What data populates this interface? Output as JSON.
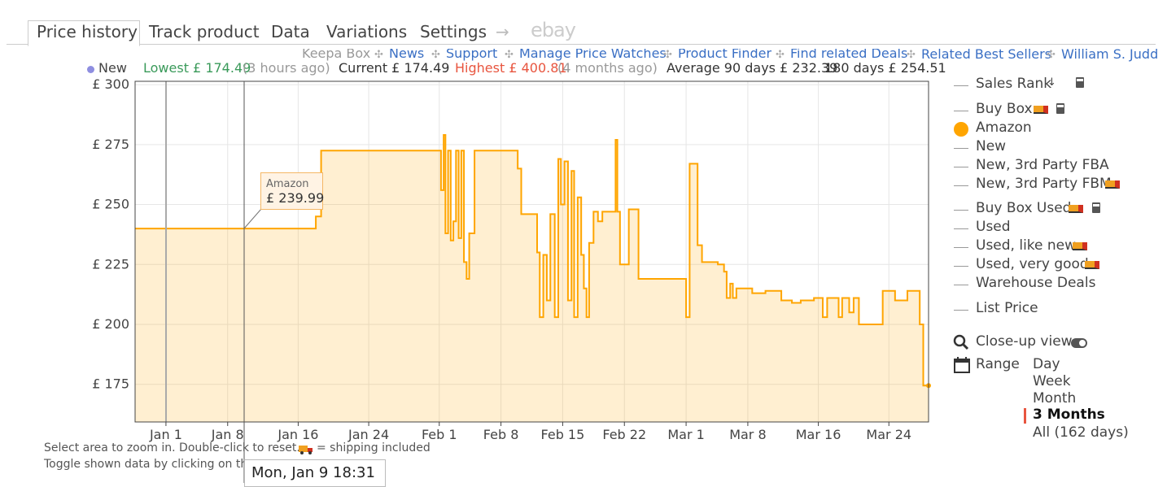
{
  "tabs": [
    "Price history",
    "Track product",
    "Data",
    "Variations",
    "Settings",
    "→",
    "ebay"
  ],
  "links": [
    "Keepa Box",
    "News",
    "Support",
    "Manage Price Watches",
    "Product Finder",
    "Find related Deals",
    "Related Best Sellers",
    "William S. Judd"
  ],
  "stats": {
    "new": "New",
    "lowest": "Lowest £ 174.49",
    "lowest_when": "(3 hours ago)",
    "current": "Current £ 174.49",
    "highest": "Highest £ 400.81",
    "highest_when": "(4 months ago)",
    "average": "Average 90 days £ 232.39",
    "average_180": "180 days £ 254.51"
  },
  "chart_data": {
    "type": "line",
    "step": true,
    "x": [
      -3.5,
      17.0,
      17.6,
      31.2,
      31.5,
      31.7,
      32.0,
      32.3,
      32.6,
      32.9,
      33.2,
      33.5,
      33.8,
      34.1,
      34.4,
      35.0,
      39.9,
      40.3,
      42.1,
      42.4,
      42.8,
      43.2,
      43.6,
      44.1,
      44.5,
      44.8,
      45.2,
      45.6,
      46.0,
      46.3,
      46.7,
      47.1,
      47.4,
      47.7,
      48.0,
      48.5,
      49.0,
      49.5,
      51.0,
      51.2,
      51.5,
      52.5,
      53.6,
      59.0,
      59.4,
      60.3,
      60.8,
      62.6,
      63.3,
      63.6,
      64.0,
      64.3,
      64.7,
      66.5,
      68.0,
      69.8,
      71.0,
      72.0,
      73.5,
      74.5,
      75.0,
      76.3,
      76.7,
      77.5,
      78.0,
      78.6,
      81.3,
      82.7,
      84.1,
      85.5,
      85.9,
      86.5
    ],
    "series": [
      {
        "name": "Amazon",
        "color": "#ffa500",
        "values": [
          239.99,
          245,
          272.5,
          256,
          279,
          238,
          272.5,
          235,
          243,
          272.5,
          236,
          272.5,
          226,
          219,
          238,
          272.5,
          265,
          246,
          230,
          203,
          229,
          210,
          246,
          203,
          269,
          250,
          268,
          210,
          264,
          203,
          253,
          229,
          215,
          203,
          234,
          247,
          243,
          247,
          277,
          247,
          225,
          248,
          219,
          203,
          267,
          233,
          226,
          225,
          222,
          211,
          217,
          211,
          215,
          213,
          214,
          210,
          209,
          210,
          211,
          203,
          211,
          203,
          211,
          205,
          211,
          200,
          214,
          210,
          214,
          200,
          174.49,
          174.49
        ]
      }
    ],
    "xlim": [
      -3.5,
      86.5
    ],
    "xticks": [
      {
        "value": 0,
        "label": "Jan 1"
      },
      {
        "value": 7,
        "label": "Jan 8"
      },
      {
        "value": 15,
        "label": "Jan 16"
      },
      {
        "value": 23,
        "label": "Jan 24"
      },
      {
        "value": 31,
        "label": "Feb 1"
      },
      {
        "value": 38,
        "label": "Feb 8"
      },
      {
        "value": 45,
        "label": "Feb 15"
      },
      {
        "value": 52,
        "label": "Feb 22"
      },
      {
        "value": 59,
        "label": "Mar 1"
      },
      {
        "value": 66,
        "label": "Mar 8"
      },
      {
        "value": 74,
        "label": "Mar 16"
      },
      {
        "value": 82,
        "label": "Mar 24"
      }
    ],
    "ylim": [
      159.3,
      301.4
    ],
    "yticks": [
      {
        "value": 175,
        "label": "£ 175"
      },
      {
        "value": 200,
        "label": "£ 200"
      },
      {
        "value": 225,
        "label": "£ 225"
      },
      {
        "value": 250,
        "label": "£ 250"
      },
      {
        "value": 275,
        "label": "£ 275"
      },
      {
        "value": 300,
        "label": "£ 300"
      }
    ],
    "grid": true,
    "tooltip": {
      "series": "Amazon",
      "label": "£ 239.99",
      "date": "Mon, Jan 9 18:31"
    }
  },
  "legend": [
    "Sales Rank",
    "Buy Box",
    "New",
    "New, 3rd Party FBA",
    "New, 3rd Party FBM",
    "Buy Box Used",
    "Used",
    "Used, like new",
    "Used, very good",
    "Warehouse Deals",
    "List Price"
  ],
  "closeup": "Close-up view",
  "range": {
    "label": "Range",
    "options": [
      "Day",
      "Week",
      "Month",
      "3 Months",
      "All (162 days)"
    ]
  },
  "notes": [
    "Select area to zoom in. Double-click to reset.",
    "= shipping included",
    "Toggle shown data by clicking on the"
  ]
}
